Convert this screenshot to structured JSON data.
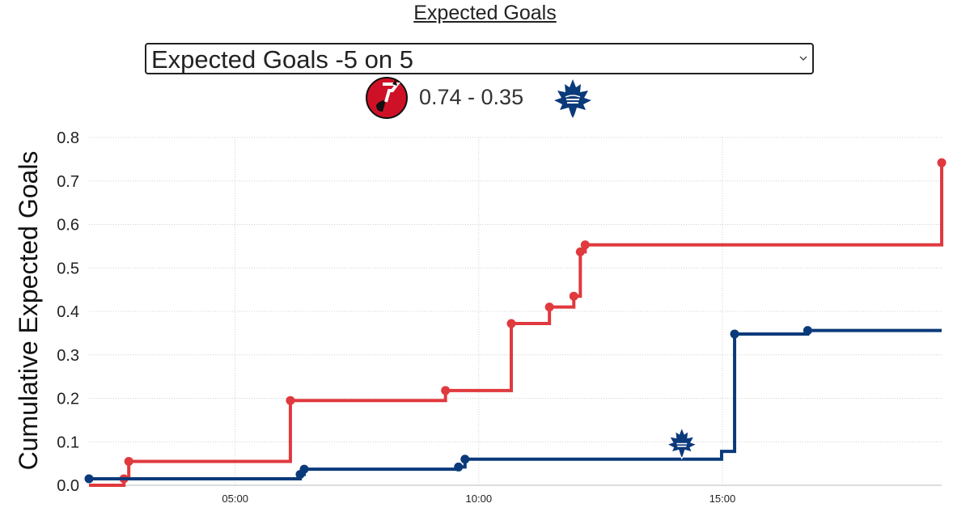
{
  "page": {
    "title": "Expected Goals",
    "selector": {
      "value": "Expected Goals -5 on 5",
      "chevron_icon": "chevron-down-icon"
    },
    "score": "0.74 - 0.35",
    "home_logo": "devils-logo",
    "away_logo": "maple-leafs-logo"
  },
  "chart_data": {
    "type": "line",
    "step": true,
    "title": "",
    "xlabel": "",
    "ylabel": "Cumulative Expected Goals",
    "xlim": [
      "02:00",
      "19:30"
    ],
    "ylim": [
      0,
      0.8
    ],
    "x_ticks": [
      "05:00",
      "10:00",
      "15:00"
    ],
    "y_ticks": [
      "0.0",
      "0.1",
      "0.2",
      "0.3",
      "0.4",
      "0.5",
      "0.6",
      "0.7",
      "0.8"
    ],
    "grid": true,
    "series": [
      {
        "color": "#e0393e",
        "x": [
          "02:00",
          "02:43",
          "02:49",
          "06:08",
          "09:19",
          "10:40",
          "11:27",
          "11:57",
          "12:05",
          "12:11",
          "19:30"
        ],
        "values": [
          0.0,
          0.015,
          0.055,
          0.195,
          0.218,
          0.372,
          0.41,
          0.435,
          0.537,
          0.553,
          0.742
        ],
        "markers": [
          false,
          true,
          true,
          true,
          true,
          true,
          true,
          true,
          true,
          true,
          true
        ]
      },
      {
        "color": "#0b3a7a",
        "x": [
          "02:00",
          "06:20",
          "06:25",
          "09:35",
          "09:43",
          "14:59",
          "15:15",
          "16:45",
          "19:30"
        ],
        "values": [
          0.015,
          0.025,
          0.037,
          0.042,
          0.06,
          0.078,
          0.348,
          0.356,
          0.356
        ],
        "markers": [
          true,
          true,
          true,
          true,
          true,
          false,
          true,
          true,
          false
        ]
      }
    ],
    "annotations": [
      {
        "type": "image",
        "icon": "maple-leafs-logo",
        "x": "14:10",
        "y": 0.08
      }
    ]
  }
}
